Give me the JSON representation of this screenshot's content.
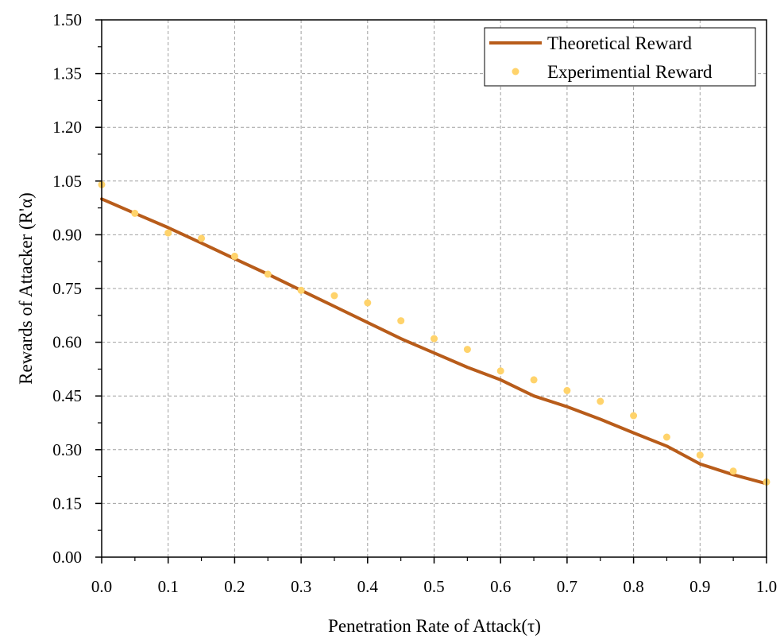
{
  "chart_data": {
    "type": "line",
    "xlabel": "Penetration Rate of Attack(τ)",
    "ylabel": "Rewards of Attacker (R'α)",
    "xlim": [
      0.0,
      1.0
    ],
    "ylim": [
      0.0,
      1.5
    ],
    "x_ticks": [
      "0.0",
      "0.1",
      "0.2",
      "0.3",
      "0.4",
      "0.5",
      "0.6",
      "0.7",
      "0.8",
      "0.9",
      "1.0"
    ],
    "y_ticks": [
      "0.00",
      "0.15",
      "0.30",
      "0.45",
      "0.60",
      "0.75",
      "0.90",
      "1.05",
      "1.20",
      "1.35",
      "1.50"
    ],
    "grid": true,
    "legend_position": "top-right",
    "series": [
      {
        "name": "Theoretical Reward",
        "style": "line",
        "color": "#b85c1a",
        "x": [
          0.0,
          0.05,
          0.1,
          0.15,
          0.2,
          0.25,
          0.3,
          0.35,
          0.4,
          0.45,
          0.5,
          0.55,
          0.6,
          0.65,
          0.7,
          0.75,
          0.8,
          0.85,
          0.9,
          0.95,
          1.0
        ],
        "y": [
          1.0,
          0.96,
          0.92,
          0.877,
          0.833,
          0.79,
          0.745,
          0.7,
          0.655,
          0.61,
          0.57,
          0.53,
          0.495,
          0.45,
          0.42,
          0.385,
          0.347,
          0.31,
          0.26,
          0.23,
          0.205
        ]
      },
      {
        "name": "Experimential Reward",
        "style": "scatter",
        "color": "#ffd36b",
        "x": [
          0.0,
          0.05,
          0.1,
          0.15,
          0.2,
          0.25,
          0.3,
          0.35,
          0.4,
          0.45,
          0.5,
          0.55,
          0.6,
          0.65,
          0.7,
          0.75,
          0.8,
          0.85,
          0.9,
          0.95,
          1.0
        ],
        "y": [
          1.04,
          0.96,
          0.905,
          0.89,
          0.84,
          0.79,
          0.745,
          0.73,
          0.71,
          0.66,
          0.61,
          0.58,
          0.52,
          0.495,
          0.465,
          0.435,
          0.395,
          0.335,
          0.285,
          0.24,
          0.21
        ]
      }
    ]
  }
}
